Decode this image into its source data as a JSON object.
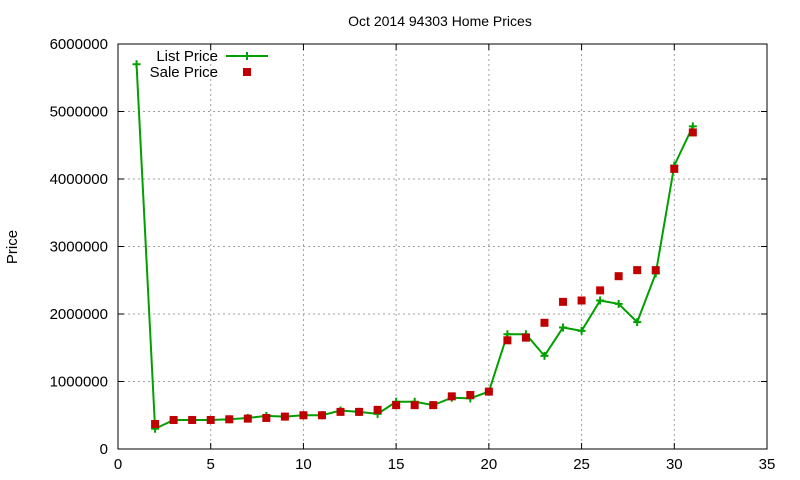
{
  "chart_data": {
    "type": "line",
    "title": "Oct 2014 94303 Home Prices",
    "xlabel": "",
    "ylabel": "Price",
    "xlim": [
      0,
      35
    ],
    "ylim": [
      0,
      6000000
    ],
    "xticks": [
      0,
      5,
      10,
      15,
      20,
      25,
      30,
      35
    ],
    "yticks": [
      0,
      1000000,
      2000000,
      3000000,
      4000000,
      5000000,
      6000000
    ],
    "xtick_labels": [
      "0",
      "5",
      "10",
      "15",
      "20",
      "25",
      "30",
      "35"
    ],
    "ytick_labels": [
      "0",
      "1000000",
      "2000000",
      "3000000",
      "4000000",
      "5000000",
      "6000000"
    ],
    "grid": true,
    "legend_position": "top-left",
    "x": [
      1,
      2,
      3,
      4,
      5,
      6,
      7,
      8,
      9,
      10,
      11,
      12,
      13,
      14,
      15,
      16,
      17,
      18,
      19,
      20,
      21,
      22,
      23,
      24,
      25,
      26,
      27,
      28,
      29,
      30,
      31
    ],
    "series": [
      {
        "name": "List Price",
        "style": "line+cross",
        "color": "#00a000",
        "values": [
          5700000,
          300000,
          430000,
          430000,
          430000,
          440000,
          460000,
          490000,
          480000,
          500000,
          500000,
          570000,
          550000,
          520000,
          700000,
          700000,
          650000,
          760000,
          750000,
          850000,
          1700000,
          1700000,
          1380000,
          1800000,
          1750000,
          2200000,
          2150000,
          1880000,
          2600000,
          4200000,
          4780000
        ]
      },
      {
        "name": "Sale Price",
        "style": "square",
        "color": "#c00000",
        "values": [
          null,
          370000,
          430000,
          430000,
          430000,
          440000,
          450000,
          460000,
          480000,
          500000,
          500000,
          550000,
          550000,
          580000,
          650000,
          650000,
          650000,
          780000,
          800000,
          850000,
          1610000,
          1650000,
          1870000,
          2180000,
          2200000,
          2350000,
          2560000,
          2650000,
          2650000,
          4150000,
          4690000
        ]
      }
    ]
  }
}
